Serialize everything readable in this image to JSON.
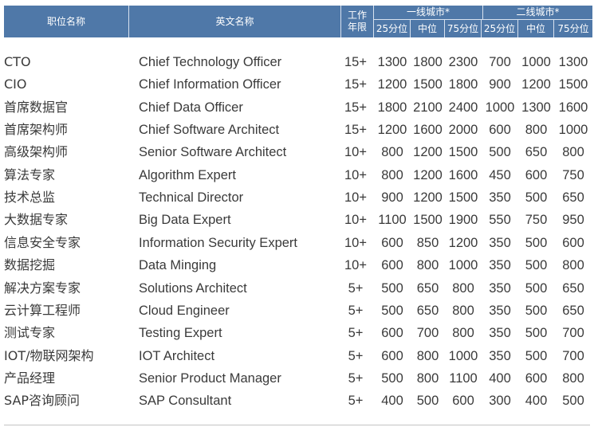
{
  "header": {
    "title_cn": "职位名称",
    "title_en": "英文名称",
    "years": "工作\n年限",
    "tier1": "一线城市*",
    "tier2": "二线城市*",
    "sub": [
      "25分位",
      "中位",
      "75分位",
      "25分位",
      "中位",
      "75分位"
    ],
    "header_color": "#4f78a8"
  },
  "rows": [
    {
      "cn": "CTO",
      "en": "Chief Technology Officer",
      "years": "15+",
      "v": [
        "1300",
        "1800",
        "2300",
        "700",
        "1000",
        "1300"
      ]
    },
    {
      "cn": "CIO",
      "en": "Chief Information Officer",
      "years": "15+",
      "v": [
        "1200",
        "1500",
        "1800",
        "900",
        "1200",
        "1500"
      ]
    },
    {
      "cn": "首席数据官",
      "en": "Chief Data Officer",
      "years": "15+",
      "v": [
        "1800",
        "2100",
        "2400",
        "1000",
        "1300",
        "1600"
      ]
    },
    {
      "cn": "首席架构师",
      "en": "Chief Software Architect",
      "years": "15+",
      "v": [
        "1200",
        "1600",
        "2000",
        "600",
        "800",
        "1000"
      ]
    },
    {
      "cn": "高级架构师",
      "en": "Senior Software Architect",
      "years": "10+",
      "v": [
        "800",
        "1200",
        "1500",
        "500",
        "650",
        "800"
      ]
    },
    {
      "cn": "算法专家",
      "en": "Algorithm Expert",
      "years": "10+",
      "v": [
        "800",
        "1200",
        "1600",
        "450",
        "600",
        "750"
      ]
    },
    {
      "cn": "技术总监",
      "en": "Technical Director",
      "years": "10+",
      "v": [
        "900",
        "1200",
        "1500",
        "350",
        "500",
        "650"
      ]
    },
    {
      "cn": "大数据专家",
      "en": "Big Data Expert",
      "years": "10+",
      "v": [
        "1100",
        "1500",
        "1900",
        "550",
        "750",
        "950"
      ]
    },
    {
      "cn": "信息安全专家",
      "en": "Information Security Expert",
      "years": "10+",
      "v": [
        "600",
        "850",
        "1200",
        "350",
        "500",
        "600"
      ]
    },
    {
      "cn": "数据挖掘",
      "en": "Data Minging",
      "years": "10+",
      "v": [
        "600",
        "800",
        "1000",
        "350",
        "500",
        "800"
      ]
    },
    {
      "cn": "解决方案专家",
      "en": "Solutions Architect",
      "years": "5+",
      "v": [
        "500",
        "650",
        "800",
        "350",
        "500",
        "650"
      ]
    },
    {
      "cn": "云计算工程师",
      "en": "Cloud Engineer",
      "years": "5+",
      "v": [
        "500",
        "650",
        "800",
        "350",
        "500",
        "650"
      ]
    },
    {
      "cn": "测试专家",
      "en": "Testing Expert",
      "years": "5+",
      "v": [
        "600",
        "700",
        "800",
        "350",
        "500",
        "700"
      ]
    },
    {
      "cn": "IOT/物联网架构",
      "en": "IOT Architect",
      "years": "5+",
      "v": [
        "600",
        "800",
        "1000",
        "350",
        "500",
        "700"
      ]
    },
    {
      "cn": "产品经理",
      "en": "Senior Product Manager",
      "years": "5+",
      "v": [
        "500",
        "800",
        "1100",
        "400",
        "600",
        "800"
      ]
    },
    {
      "cn": "SAP咨询顾问",
      "en": "SAP Consultant",
      "years": "5+",
      "v": [
        "400",
        "500",
        "600",
        "300",
        "400",
        "500"
      ]
    }
  ]
}
